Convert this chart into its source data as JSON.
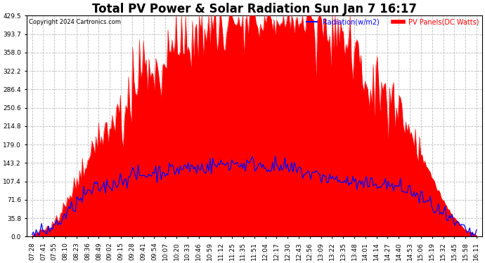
{
  "title": "Total PV Power & Solar Radiation Sun Jan 7 16:17",
  "copyright": "Copyright 2024 Cartronics.com",
  "legend_radiation": "Radiation(w/m2)",
  "legend_pv": "PV Panels(DC Watts)",
  "legend_color_radiation": "#0000FF",
  "legend_color_pv": "#FF0000",
  "bg_color": "#FFFFFF",
  "plot_bg_color": "#FFFFFF",
  "grid_color": "#BBBBBB",
  "grid_style": "--",
  "ylim": [
    0.0,
    429.5
  ],
  "yticks": [
    0.0,
    35.8,
    71.6,
    107.4,
    143.2,
    179.0,
    214.8,
    250.6,
    286.4,
    322.2,
    358.0,
    393.7,
    429.5
  ],
  "title_fontsize": 12,
  "tick_fontsize": 6.5,
  "x_labels": [
    "07:28",
    "07:41",
    "07:55",
    "08:10",
    "08:23",
    "08:36",
    "08:49",
    "09:02",
    "09:15",
    "09:28",
    "09:41",
    "09:54",
    "10:07",
    "10:20",
    "10:33",
    "10:46",
    "10:59",
    "11:12",
    "11:25",
    "11:35",
    "11:51",
    "12:04",
    "12:17",
    "12:30",
    "12:43",
    "12:56",
    "13:09",
    "13:22",
    "13:35",
    "13:48",
    "14:01",
    "14:14",
    "14:27",
    "14:40",
    "14:53",
    "15:06",
    "15:19",
    "15:32",
    "15:45",
    "15:58",
    "16:11"
  ],
  "pv_color": "#FF0000",
  "radiation_color": "#0000FF",
  "radiation_linewidth": 0.9,
  "pv_alpha": 1.0,
  "pv_values": [
    3,
    12,
    28,
    55,
    95,
    145,
    180,
    200,
    190,
    260,
    310,
    280,
    330,
    360,
    350,
    380,
    370,
    390,
    405,
    395,
    420,
    415,
    429,
    410,
    418,
    400,
    395,
    385,
    370,
    350,
    310,
    280,
    255,
    230,
    200,
    155,
    110,
    70,
    35,
    12,
    3
  ],
  "pv_spikes": [
    0,
    5,
    10,
    15,
    20,
    20,
    30,
    40,
    80,
    50,
    60,
    80,
    60,
    50,
    70,
    50,
    80,
    60,
    40,
    60,
    30,
    50,
    30,
    50,
    30,
    60,
    50,
    60,
    50,
    60,
    70,
    60,
    50,
    40,
    30,
    20,
    10,
    5,
    3,
    2,
    0
  ],
  "rad_values": [
    2,
    8,
    20,
    40,
    65,
    85,
    95,
    100,
    110,
    120,
    118,
    125,
    128,
    130,
    135,
    132,
    138,
    140,
    143,
    140,
    142,
    138,
    135,
    132,
    128,
    122,
    118,
    112,
    108,
    105,
    98,
    105,
    100,
    95,
    88,
    75,
    60,
    42,
    25,
    10,
    3
  ]
}
